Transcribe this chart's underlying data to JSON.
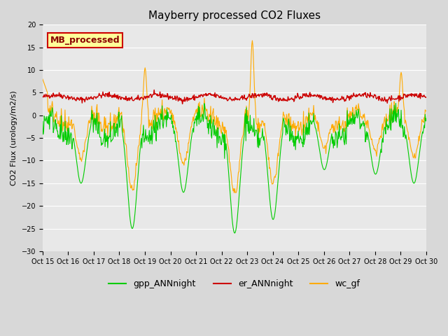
{
  "title": "Mayberry processed CO2 Fluxes",
  "ylabel": "CO2 Flux (urology/m2/s)",
  "ylim": [
    -30,
    20
  ],
  "yticks": [
    -30,
    -25,
    -20,
    -15,
    -10,
    -5,
    0,
    5,
    10,
    15,
    20
  ],
  "background_color": "#d8d8d8",
  "plot_bg_color": "#e8e8e8",
  "legend_label": "MB_processed",
  "legend_text_color": "#8b0000",
  "legend_box_color": "#ffff99",
  "line_colors": {
    "gpp": "#00cc00",
    "er": "#cc0000",
    "wc": "#ffaa00"
  },
  "legend_entries": [
    "gpp_ANNnight",
    "er_ANNnight",
    "wc_gf"
  ],
  "x_tick_labels": [
    "Oct 15",
    "Oct 16",
    "Oct 17",
    "Oct 18",
    "Oct 19",
    "Oct 20",
    "Oct 21",
    "Oct 22",
    "Oct 23",
    "Oct 24",
    "Oct 25",
    "Oct 26",
    "Oct 27",
    "Oct 28",
    "Oct 29",
    "Oct 30"
  ],
  "n_days": 15,
  "seed": 42
}
